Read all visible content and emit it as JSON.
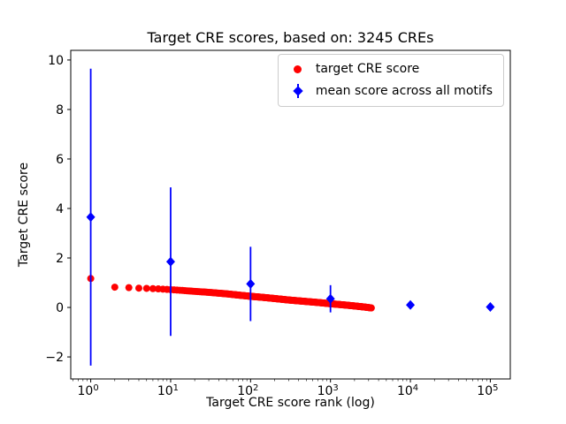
{
  "chart_data": {
    "type": "scatter",
    "title": "Target CRE scores, based on: 3245 CREs",
    "xlabel": "Target CRE score rank (log)",
    "ylabel": "Target CRE score",
    "x_scale": "log",
    "y_scale": "linear",
    "xlim_log10": [
      -0.25,
      5.25
    ],
    "ylim": [
      -2.89,
      10.39
    ],
    "grid": false,
    "legend_position": "upper right",
    "x_ticks": [
      {
        "value": 1,
        "base": "10",
        "exp": "0"
      },
      {
        "value": 10,
        "base": "10",
        "exp": "1"
      },
      {
        "value": 100,
        "base": "10",
        "exp": "2"
      },
      {
        "value": 1000,
        "base": "10",
        "exp": "3"
      },
      {
        "value": 10000,
        "base": "10",
        "exp": "4"
      },
      {
        "value": 100000,
        "base": "10",
        "exp": "5"
      }
    ],
    "y_ticks": [
      {
        "value": -2,
        "label": "−2"
      },
      {
        "value": 0,
        "label": "0"
      },
      {
        "value": 2,
        "label": "2"
      },
      {
        "value": 4,
        "label": "4"
      },
      {
        "value": 6,
        "label": "6"
      },
      {
        "value": 8,
        "label": "8"
      },
      {
        "value": 10,
        "label": "10"
      }
    ],
    "series": [
      {
        "name": "target CRE score",
        "marker": "circle",
        "color": "#ff0000",
        "n_points": 3245,
        "points": [
          [
            1,
            1.17
          ],
          [
            2,
            0.82
          ],
          [
            3,
            0.8
          ],
          [
            4,
            0.78
          ],
          [
            5,
            0.77
          ],
          [
            6,
            0.76
          ],
          [
            7,
            0.75
          ],
          [
            8,
            0.74
          ],
          [
            10,
            0.72
          ],
          [
            15,
            0.68
          ],
          [
            20,
            0.65
          ],
          [
            30,
            0.61
          ],
          [
            50,
            0.55
          ],
          [
            70,
            0.5
          ],
          [
            100,
            0.45
          ],
          [
            150,
            0.4
          ],
          [
            200,
            0.36
          ],
          [
            300,
            0.3
          ],
          [
            500,
            0.24
          ],
          [
            700,
            0.2
          ],
          [
            1000,
            0.15
          ],
          [
            1500,
            0.1
          ],
          [
            2000,
            0.06
          ],
          [
            2600,
            0.02
          ],
          [
            3245,
            -0.02
          ]
        ]
      },
      {
        "name": "mean score across all motifs",
        "marker": "diamond",
        "color": "#0000ff",
        "points": [
          [
            1,
            3.65
          ],
          [
            10,
            1.85
          ],
          [
            100,
            0.95
          ],
          [
            1000,
            0.35
          ],
          [
            10000,
            0.1
          ],
          [
            100000,
            0.02
          ]
        ],
        "yerr": [
          6.0,
          3.0,
          1.5,
          0.55,
          0.12,
          0.05
        ]
      }
    ]
  }
}
